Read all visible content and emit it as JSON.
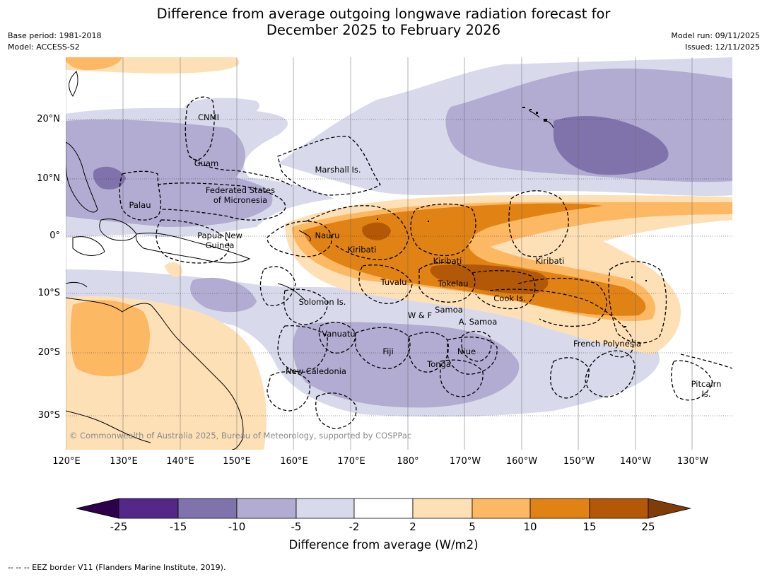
{
  "title": {
    "line1": "Difference from average outgoing longwave radiation forecast for",
    "line2": "December 2025 to February 2026"
  },
  "meta_left": {
    "base_period": "Base period: 1981-2018",
    "model": "Model: ACCESS-S2"
  },
  "meta_right": {
    "model_run": "Model run: 09/11/2025",
    "issued": "Issued: 12/11/2025"
  },
  "map": {
    "lat_labels": [
      "20°N",
      "10°N",
      "0°",
      "10°S",
      "20°S",
      "30°S"
    ],
    "lon_labels": [
      "120°E",
      "130°E",
      "140°E",
      "150°E",
      "160°E",
      "170°E",
      "180°",
      "170°W",
      "160°W",
      "150°W",
      "140°W",
      "130°W"
    ],
    "regions": [
      "CNMI",
      "Guam",
      "Marshall Is.",
      "Federated States\nof Micronesia",
      "Palau",
      "Papua New\nGuinea",
      "Nauru",
      "Kiribati",
      "Kiribati",
      "Kiribati",
      "Tuvalu",
      "Tokelau",
      "Cook Is.",
      "Solomon Is.",
      "W & F",
      "Samoa",
      "A. Samoa",
      "Vanuatu",
      "Fiji",
      "Niue",
      "Tonga",
      "New Caledonia",
      "French Polynesia",
      "Pitcairn\nIs."
    ],
    "copyright": "© Commonwealth of Australia 2025, Bureau of Meteorology, supported by COSPPac"
  },
  "colorbar": {
    "ticks": [
      "-25",
      "-15",
      "-10",
      "-5",
      "-2",
      "2",
      "5",
      "10",
      "15",
      "25"
    ],
    "colors": [
      "#2d004b",
      "#542788",
      "#8073ac",
      "#b2abd2",
      "#d8daeb",
      "#ffffff",
      "#fee0b6",
      "#fdb863",
      "#e08214",
      "#b35806",
      "#7f3b08"
    ],
    "title": "Difference from average (W/m2)"
  },
  "footnote": "--  --  -- EEZ border V11 (Flanders Marine Institute, 2019)."
}
